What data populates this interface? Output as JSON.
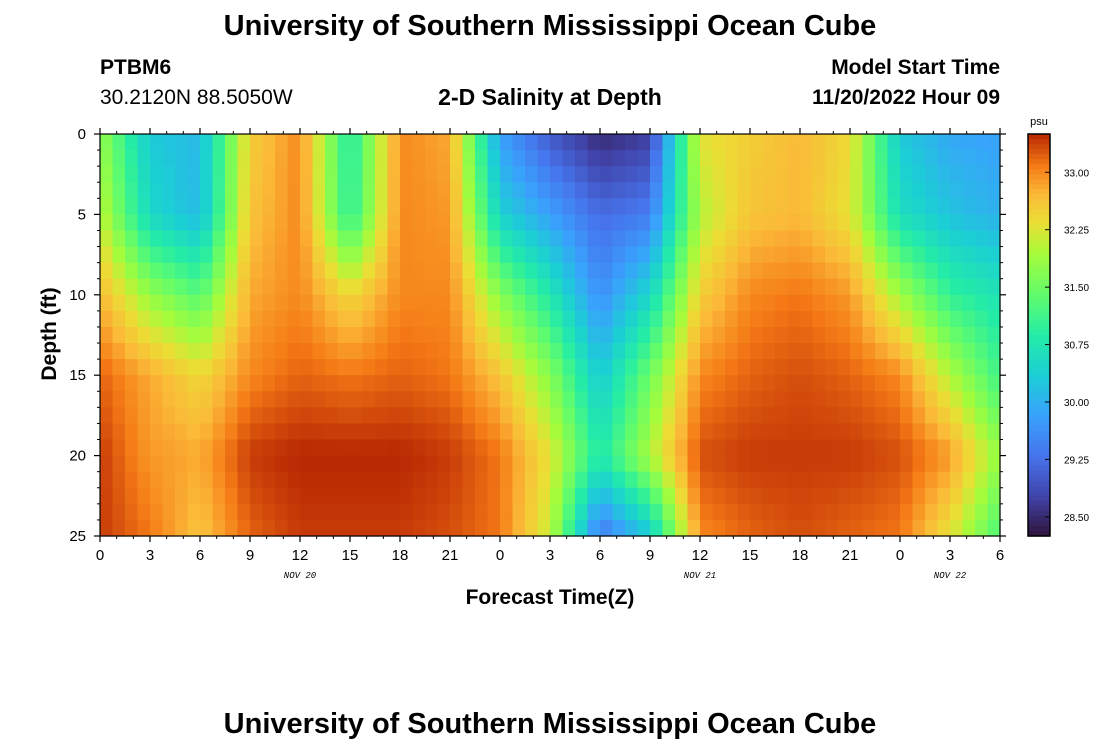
{
  "header": {
    "title": "University of Southern Mississippi Ocean Cube",
    "station_id": "PTBM6",
    "coordinates": "30.2120N  88.5050W",
    "plot_title": "2-D Salinity at Depth",
    "model_start_label": "Model Start Time",
    "model_start_value": "11/20/2022 Hour 09"
  },
  "footer": {
    "title": "University of Southern Mississippi Ocean Cube"
  },
  "chart_data": {
    "type": "heatmap",
    "title": "2-D Salinity at Depth",
    "xlabel": "Forecast Time(Z)",
    "ylabel": "Depth (ft)",
    "x_tick_labels": [
      "0",
      "3",
      "6",
      "9",
      "12",
      "15",
      "18",
      "21",
      "0",
      "3",
      "6",
      "9",
      "12",
      "15",
      "18",
      "21",
      "0",
      "3",
      "6"
    ],
    "x_range_hours": [
      0,
      54
    ],
    "y_ticks": [
      0,
      5,
      10,
      15,
      20,
      25
    ],
    "y_range_ft": [
      0,
      25
    ],
    "date_labels": [
      {
        "text": "NOV 20",
        "hour": 12
      },
      {
        "text": "NOV 21",
        "hour": 36
      },
      {
        "text": "NOV 22",
        "hour": 51
      }
    ],
    "colorbar": {
      "unit": "psu",
      "min": 28.25,
      "max": 33.5,
      "ticks": [
        "33.00",
        "32.25",
        "31.50",
        "30.75",
        "30.00",
        "29.25",
        "28.50"
      ],
      "tick_values": [
        33.0,
        32.25,
        31.5,
        30.75,
        30.0,
        29.25,
        28.5
      ]
    },
    "salinity_profiles_psu": {
      "depths_ft": [
        0,
        5,
        10,
        15,
        20,
        25
      ],
      "hours": [
        0,
        3,
        6,
        9,
        12,
        15,
        18,
        21,
        24,
        27,
        30,
        33,
        36,
        39,
        42,
        45,
        48,
        51,
        54
      ],
      "values": [
        [
          31.8,
          30.3,
          30.1,
          32.5,
          33.0,
          30.8,
          33.0,
          32.8,
          29.8,
          29.0,
          28.5,
          28.7,
          32.3,
          32.5,
          32.7,
          32.4,
          30.3,
          29.9,
          29.8
        ],
        [
          32.1,
          30.5,
          30.1,
          32.6,
          33.0,
          30.9,
          33.0,
          32.9,
          30.4,
          29.8,
          29.2,
          29.4,
          32.0,
          32.6,
          32.7,
          32.3,
          30.6,
          30.2,
          30.0
        ],
        [
          32.7,
          31.8,
          31.3,
          32.8,
          33.0,
          32.4,
          33.0,
          33.0,
          31.7,
          30.8,
          29.6,
          30.5,
          32.5,
          33.0,
          33.1,
          32.9,
          31.9,
          31.0,
          30.7
        ],
        [
          33.2,
          32.8,
          32.4,
          33.0,
          33.2,
          33.1,
          33.2,
          33.1,
          32.6,
          31.7,
          30.3,
          31.5,
          33.0,
          33.2,
          33.3,
          33.2,
          33.0,
          32.0,
          31.1
        ],
        [
          33.4,
          32.9,
          32.8,
          33.4,
          33.5,
          33.5,
          33.5,
          33.4,
          33.1,
          32.3,
          30.8,
          32.0,
          33.3,
          33.4,
          33.4,
          33.4,
          33.3,
          32.9,
          31.8
        ],
        [
          33.4,
          33.1,
          32.6,
          33.2,
          33.4,
          33.4,
          33.4,
          33.3,
          33.1,
          32.1,
          29.3,
          30.3,
          33.0,
          33.2,
          33.3,
          33.2,
          33.1,
          32.3,
          31.2
        ]
      ]
    }
  }
}
